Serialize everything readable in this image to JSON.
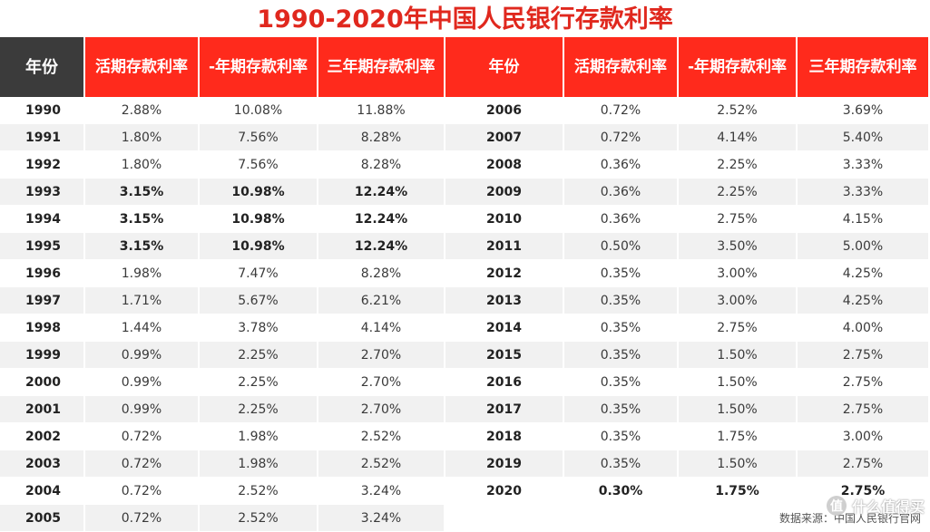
{
  "chart_data": {
    "type": "table",
    "title": "1990-2020年中国人民银行存款利率",
    "columns": [
      "年份",
      "活期存款利率",
      "-年期存款利率",
      "三年期存款利率"
    ],
    "rows": [
      {
        "year": "1990",
        "demand": "2.88%",
        "one_year": "10.08%",
        "three_year": "11.88%"
      },
      {
        "year": "1991",
        "demand": "1.80%",
        "one_year": "7.56%",
        "three_year": "8.28%"
      },
      {
        "year": "1992",
        "demand": "1.80%",
        "one_year": "7.56%",
        "three_year": "8.28%"
      },
      {
        "year": "1993",
        "demand": "3.15%",
        "one_year": "10.98%",
        "three_year": "12.24%",
        "bold": true
      },
      {
        "year": "1994",
        "demand": "3.15%",
        "one_year": "10.98%",
        "three_year": "12.24%",
        "bold": true
      },
      {
        "year": "1995",
        "demand": "3.15%",
        "one_year": "10.98%",
        "three_year": "12.24%",
        "bold": true
      },
      {
        "year": "1996",
        "demand": "1.98%",
        "one_year": "7.47%",
        "three_year": "8.28%"
      },
      {
        "year": "1997",
        "demand": "1.71%",
        "one_year": "5.67%",
        "three_year": "6.21%"
      },
      {
        "year": "1998",
        "demand": "1.44%",
        "one_year": "3.78%",
        "three_year": "4.14%"
      },
      {
        "year": "1999",
        "demand": "0.99%",
        "one_year": "2.25%",
        "three_year": "2.70%"
      },
      {
        "year": "2000",
        "demand": "0.99%",
        "one_year": "2.25%",
        "three_year": "2.70%"
      },
      {
        "year": "2001",
        "demand": "0.99%",
        "one_year": "2.25%",
        "three_year": "2.70%"
      },
      {
        "year": "2002",
        "demand": "0.72%",
        "one_year": "1.98%",
        "three_year": "2.52%"
      },
      {
        "year": "2003",
        "demand": "0.72%",
        "one_year": "1.98%",
        "three_year": "2.52%"
      },
      {
        "year": "2004",
        "demand": "0.72%",
        "one_year": "2.52%",
        "three_year": "3.24%"
      },
      {
        "year": "2005",
        "demand": "0.72%",
        "one_year": "2.52%",
        "three_year": "3.24%"
      },
      {
        "year": "2006",
        "demand": "0.72%",
        "one_year": "2.52%",
        "three_year": "3.69%"
      },
      {
        "year": "2007",
        "demand": "0.72%",
        "one_year": "4.14%",
        "three_year": "5.40%"
      },
      {
        "year": "2008",
        "demand": "0.36%",
        "one_year": "2.25%",
        "three_year": "3.33%"
      },
      {
        "year": "2009",
        "demand": "0.36%",
        "one_year": "2.25%",
        "three_year": "3.33%"
      },
      {
        "year": "2010",
        "demand": "0.36%",
        "one_year": "2.75%",
        "three_year": "4.15%"
      },
      {
        "year": "2011",
        "demand": "0.50%",
        "one_year": "3.50%",
        "three_year": "5.00%"
      },
      {
        "year": "2012",
        "demand": "0.35%",
        "one_year": "3.00%",
        "three_year": "4.25%"
      },
      {
        "year": "2013",
        "demand": "0.35%",
        "one_year": "3.00%",
        "three_year": "4.25%"
      },
      {
        "year": "2014",
        "demand": "0.35%",
        "one_year": "2.75%",
        "three_year": "4.00%"
      },
      {
        "year": "2015",
        "demand": "0.35%",
        "one_year": "1.50%",
        "three_year": "2.75%"
      },
      {
        "year": "2016",
        "demand": "0.35%",
        "one_year": "1.50%",
        "three_year": "2.75%"
      },
      {
        "year": "2017",
        "demand": "0.35%",
        "one_year": "1.50%",
        "three_year": "2.75%"
      },
      {
        "year": "2018",
        "demand": "0.35%",
        "one_year": "1.75%",
        "three_year": "3.00%"
      },
      {
        "year": "2019",
        "demand": "0.35%",
        "one_year": "1.50%",
        "three_year": "2.75%"
      },
      {
        "year": "2020",
        "demand": "0.30%",
        "one_year": "1.75%",
        "three_year": "2.75%",
        "bold": true
      }
    ],
    "source_note": "数据来源：中国人民银行官网"
  },
  "watermark": "值 什么值得买",
  "colors": {
    "title": "#e0281e",
    "header_red": "#ff2a1c",
    "header_dark": "#3b3b3b",
    "stripe": "#f1f1f1"
  }
}
